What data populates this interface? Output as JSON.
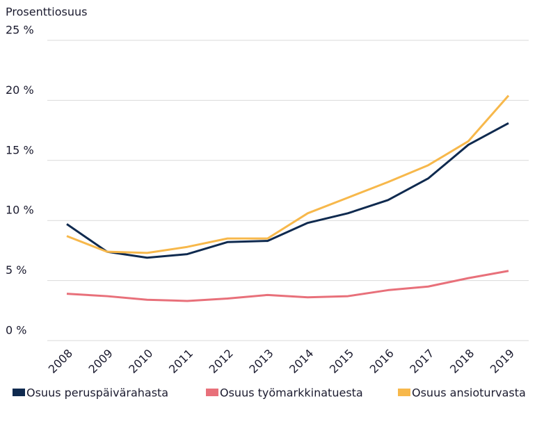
{
  "chart_data": {
    "type": "line",
    "y_label": "Prosenttiosuus",
    "categories": [
      "2008",
      "2009",
      "2010",
      "2011",
      "2012",
      "2013",
      "2014",
      "2015",
      "2016",
      "2017",
      "2018",
      "2019"
    ],
    "series": [
      {
        "name": "Osuus peruspäivärahasta",
        "color": "#0f2a4f",
        "values": [
          9.7,
          7.4,
          6.9,
          7.2,
          8.2,
          8.3,
          9.8,
          10.6,
          11.7,
          13.5,
          16.3,
          18.1
        ]
      },
      {
        "name": "Osuus työmarkkinatuesta",
        "color": "#e8707a",
        "values": [
          3.9,
          3.7,
          3.4,
          3.3,
          3.5,
          3.8,
          3.6,
          3.7,
          4.2,
          4.5,
          5.2,
          5.8
        ]
      },
      {
        "name": "Osuus ansioturvasta",
        "color": "#f7b84b",
        "values": [
          8.7,
          7.4,
          7.3,
          7.8,
          8.5,
          8.5,
          10.6,
          11.9,
          13.2,
          14.6,
          16.6,
          20.4
        ]
      }
    ],
    "ylim": [
      0,
      25
    ],
    "yticks": [
      {
        "value": 0,
        "label": "0 %"
      },
      {
        "value": 5,
        "label": "5 %"
      },
      {
        "value": 10,
        "label": "10 %"
      },
      {
        "value": 15,
        "label": "15 %"
      },
      {
        "value": 20,
        "label": "20 %"
      },
      {
        "value": 25,
        "label": "25 %"
      }
    ],
    "grid": true,
    "legend": "bottom"
  }
}
